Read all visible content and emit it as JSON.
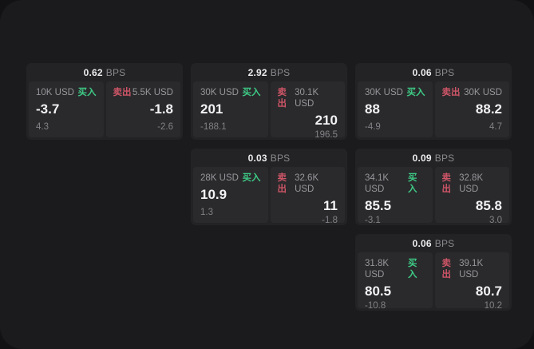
{
  "labels": {
    "bps_unit": "BPS",
    "buy": "买入",
    "sell": "卖出"
  },
  "colors": {
    "outer_background": "#121214",
    "panel_background": "#1b1b1d",
    "card_background": "#232325",
    "cell_background": "#2a2a2c",
    "buy_green": "#3ecb86",
    "sell_red": "#cd5567"
  },
  "cards": [
    {
      "bps": "0.62",
      "buy": {
        "amount": "10K USD",
        "value": "-3.7",
        "sub": "4.3"
      },
      "sell": {
        "amount": "5.5K USD",
        "value": "-1.8",
        "sub": "-2.6"
      }
    },
    {
      "bps": "2.92",
      "buy": {
        "amount": "30K USD",
        "value": "201",
        "sub": "-188.1"
      },
      "sell": {
        "amount": "30.1K USD",
        "value": "210",
        "sub": "196.5"
      }
    },
    {
      "bps": "0.06",
      "buy": {
        "amount": "30K USD",
        "value": "88",
        "sub": "-4.9"
      },
      "sell": {
        "amount": "30K USD",
        "value": "88.2",
        "sub": "4.7"
      }
    },
    {
      "bps": "0.03",
      "buy": {
        "amount": "28K USD",
        "value": "10.9",
        "sub": "1.3"
      },
      "sell": {
        "amount": "32.6K USD",
        "value": "11",
        "sub": "-1.8"
      }
    },
    {
      "bps": "0.09",
      "buy": {
        "amount": "34.1K USD",
        "value": "85.5",
        "sub": "-3.1"
      },
      "sell": {
        "amount": "32.8K USD",
        "value": "85.8",
        "sub": "3.0"
      }
    },
    {
      "bps": "0.06",
      "buy": {
        "amount": "31.8K USD",
        "value": "80.5",
        "sub": "-10.8"
      },
      "sell": {
        "amount": "39.1K USD",
        "value": "80.7",
        "sub": "10.2"
      }
    }
  ]
}
